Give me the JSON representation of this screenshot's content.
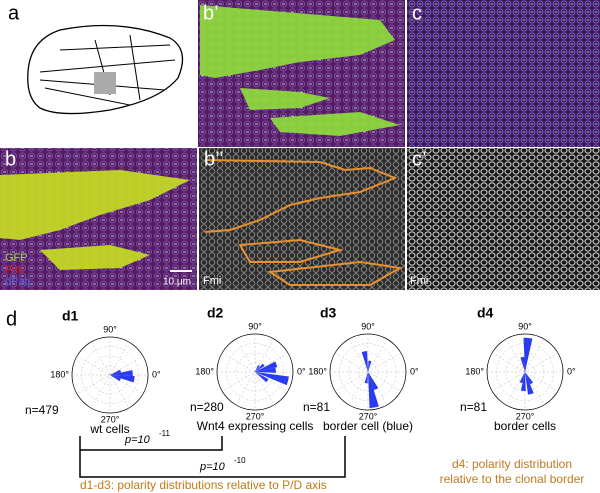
{
  "panels": {
    "a": "a",
    "b1": "b’",
    "c": "c",
    "b": "b",
    "b2": "b’’",
    "c1": "c’"
  },
  "stains": {
    "gfp": "GFP",
    "fmi": "Fmi",
    "dpatj": "dPatj",
    "b2": "Fmi",
    "c1": "Fmi"
  },
  "scale_bar": "10 μm",
  "section": "d",
  "rose_plots": [
    {
      "id": "d1",
      "deg90": "90°",
      "deg180": "180°",
      "deg0": "0°",
      "deg270": "270°",
      "n": "n=479",
      "caption": "wt cells"
    },
    {
      "id": "d2",
      "deg90": "90°",
      "deg180": "180°",
      "deg0": "0°",
      "deg270": "270°",
      "n": "n=280",
      "caption": "Wnt4 expressing cells"
    },
    {
      "id": "d3",
      "deg90": "90°",
      "deg180": "180°",
      "deg0": "0°",
      "deg270": "270°",
      "n": "n=81",
      "caption": "border cell (blue)"
    },
    {
      "id": "d4",
      "deg90": "90°",
      "deg180": "180°",
      "deg0": "0°",
      "deg270": "270°",
      "n": "n=81",
      "caption": "border cells"
    }
  ],
  "comparisons": [
    {
      "p": "p=10",
      "exp": "-11"
    },
    {
      "p": "p=10",
      "exp": "-10"
    }
  ],
  "notes": {
    "d1_d3": "d1-d3:  polarity distributions relative to P/D axis",
    "d4_line1": "d4: polarity distribution",
    "d4_line2": "relative to the clonal border"
  }
}
